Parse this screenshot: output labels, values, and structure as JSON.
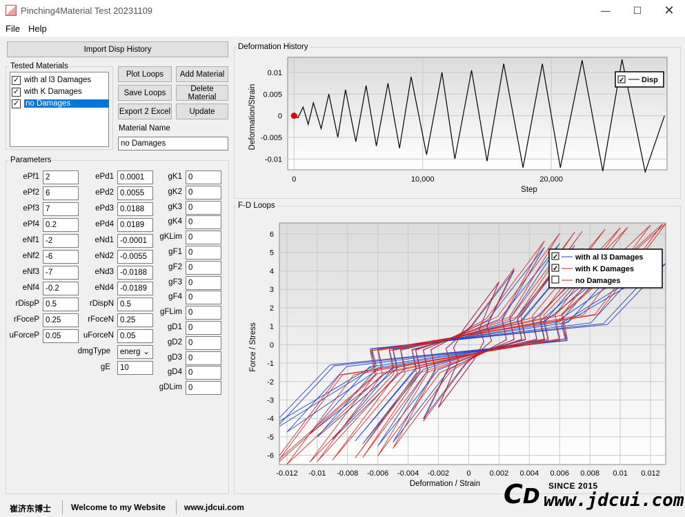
{
  "window": {
    "title": "Pinching4Material Test 20231109"
  },
  "menu": [
    "File",
    "Help"
  ],
  "buttons": {
    "import": "Import Disp History",
    "plot": "Plot Loops",
    "add": "Add Material",
    "save": "Save Loops",
    "delete": "Delete Material",
    "export": "Export 2 Excel",
    "update": "Update"
  },
  "tested": {
    "title": "Tested Materials",
    "items": [
      {
        "label": "with al l3 Damages",
        "checked": true
      },
      {
        "label": "with K Damages",
        "checked": true
      },
      {
        "label": "no Damages",
        "checked": true,
        "selected": true
      }
    ]
  },
  "material_name": {
    "label": "Material Name",
    "value": "no Damages"
  },
  "parameters": {
    "title": "Parameters",
    "col1": [
      {
        "k": "ePf1",
        "v": "2"
      },
      {
        "k": "ePf2",
        "v": "6"
      },
      {
        "k": "ePf3",
        "v": "7"
      },
      {
        "k": "ePf4",
        "v": "0.2"
      },
      {
        "k": "eNf1",
        "v": "-2"
      },
      {
        "k": "eNf2",
        "v": "-6"
      },
      {
        "k": "eNf3",
        "v": "-7"
      },
      {
        "k": "eNf4",
        "v": "-0.2"
      },
      {
        "k": "rDispP",
        "v": "0.5"
      },
      {
        "k": "rFoceP",
        "v": "0.25"
      },
      {
        "k": "uForceP",
        "v": "0.05"
      }
    ],
    "col2": [
      {
        "k": "ePd1",
        "v": "0.0001"
      },
      {
        "k": "ePd2",
        "v": "0.0055"
      },
      {
        "k": "ePd3",
        "v": "0.0188"
      },
      {
        "k": "ePd4",
        "v": "0.0189"
      },
      {
        "k": "eNd1",
        "v": "-0.0001"
      },
      {
        "k": "eNd2",
        "v": "-0.0055"
      },
      {
        "k": "eNd3",
        "v": "-0.0188"
      },
      {
        "k": "eNd4",
        "v": "-0.0189"
      },
      {
        "k": "rDispN",
        "v": "0.5"
      },
      {
        "k": "rFoceN",
        "v": "0.25"
      },
      {
        "k": "uForceN",
        "v": "0.05"
      }
    ],
    "col3": [
      {
        "k": "gK1",
        "v": "0"
      },
      {
        "k": "gK2",
        "v": "0"
      },
      {
        "k": "gK3",
        "v": "0"
      },
      {
        "k": "gK4",
        "v": "0"
      },
      {
        "k": "gKLim",
        "v": "0"
      },
      {
        "k": "gF1",
        "v": "0"
      },
      {
        "k": "gF2",
        "v": "0"
      },
      {
        "k": "gF3",
        "v": "0"
      },
      {
        "k": "gF4",
        "v": "0"
      },
      {
        "k": "gFLim",
        "v": "0"
      },
      {
        "k": "gD1",
        "v": "0"
      },
      {
        "k": "gD2",
        "v": "0"
      },
      {
        "k": "gD3",
        "v": "0"
      },
      {
        "k": "gD4",
        "v": "0"
      },
      {
        "k": "gDLim",
        "v": "0"
      }
    ],
    "dmgType": {
      "label": "dmgType",
      "value": "energ"
    },
    "gE": {
      "label": "gE",
      "value": "10"
    }
  },
  "status": {
    "author": "崔济东博士",
    "welcome": "Welcome to my Website",
    "site": "www.jdcui.com"
  },
  "watermark": {
    "since": "SINCE 2015",
    "url": "www.jdcui.com"
  },
  "chart_data": [
    {
      "type": "line",
      "panel": "Deformation History",
      "xlabel": "Step",
      "ylabel": "Deformation/Strain",
      "xlim": [
        -500,
        29000
      ],
      "ylim": [
        -0.0125,
        0.0135
      ],
      "xticks": [
        0,
        10000,
        20000
      ],
      "xticklabels": [
        "0",
        "10,000",
        "20,000"
      ],
      "yticks": [
        0.01,
        0.005,
        0,
        -0.005,
        -0.01
      ],
      "yticklabels": [
        "0.01",
        "0.005",
        "0",
        "-0.005",
        "-0.01"
      ],
      "series": [
        {
          "name": "Disp",
          "color": "#000000",
          "x": [
            0,
            300,
            700,
            1100,
            1500,
            2100,
            2700,
            3400,
            4000,
            4800,
            5600,
            6400,
            7300,
            8200,
            9100,
            10300,
            11500,
            12500,
            13800,
            15000,
            16300,
            17800,
            19300,
            20700,
            22400,
            24000,
            25500,
            27300,
            28800
          ],
          "y": [
            0,
            -0.0005,
            0.002,
            -0.002,
            0.003,
            -0.003,
            0.005,
            -0.005,
            0.006,
            -0.006,
            0.007,
            -0.007,
            0.0075,
            -0.0075,
            0.009,
            -0.009,
            0.01,
            -0.01,
            0.0105,
            -0.0105,
            0.012,
            -0.012,
            0.012,
            -0.012,
            0.0128,
            -0.0128,
            0.013,
            -0.013,
            0.0
          ]
        }
      ],
      "legend": "top-right",
      "marker": {
        "x": 0,
        "y": 0,
        "color": "#e00000"
      }
    },
    {
      "type": "line",
      "panel": "F-D Loops",
      "xlabel": "Deformation / Strain",
      "ylabel": "Force /  Stress",
      "xlim": [
        -0.0125,
        0.013
      ],
      "ylim": [
        -6.5,
        6.6
      ],
      "xticks": [
        -0.012,
        -0.01,
        -0.008,
        -0.006,
        -0.004,
        -0.002,
        0,
        0.002,
        0.004,
        0.006,
        0.008,
        0.01,
        0.012
      ],
      "xticklabels": [
        "-0.012",
        "-0.01",
        "-0.008",
        "-0.006",
        "-0.004",
        "-0.002",
        "0",
        "0.002",
        "0.004",
        "0.006",
        "0.008",
        "0.01",
        "0.012"
      ],
      "yticks": [
        6,
        5,
        4,
        3,
        2,
        1,
        0,
        -1,
        -2,
        -3,
        -4,
        -5,
        -6
      ],
      "yticklabels": [
        "6",
        "5",
        "4",
        "3",
        "2",
        "1",
        "0",
        "-1",
        "-2",
        "-3",
        "-4",
        "-5",
        "-6"
      ],
      "legend": "top-right",
      "series": [
        {
          "name": "with al l3 Damages",
          "color": "#1f3fbf",
          "amps": [
            0.002,
            0.003,
            0.005,
            0.006,
            0.007,
            0.0075,
            0.009,
            0.01,
            0.0105,
            0.012,
            0.0128,
            0.013
          ],
          "degrade": 0.55
        },
        {
          "name": "with K Damages",
          "color": "#d02020",
          "amps": [
            0.002,
            0.003,
            0.005,
            0.006,
            0.007,
            0.0075,
            0.009,
            0.01,
            0.0105,
            0.012,
            0.0128,
            0.013
          ],
          "degrade": 0.0
        },
        {
          "name": "no Damages",
          "color": "#d02020",
          "amps": [],
          "degrade": 0.0
        }
      ]
    }
  ]
}
